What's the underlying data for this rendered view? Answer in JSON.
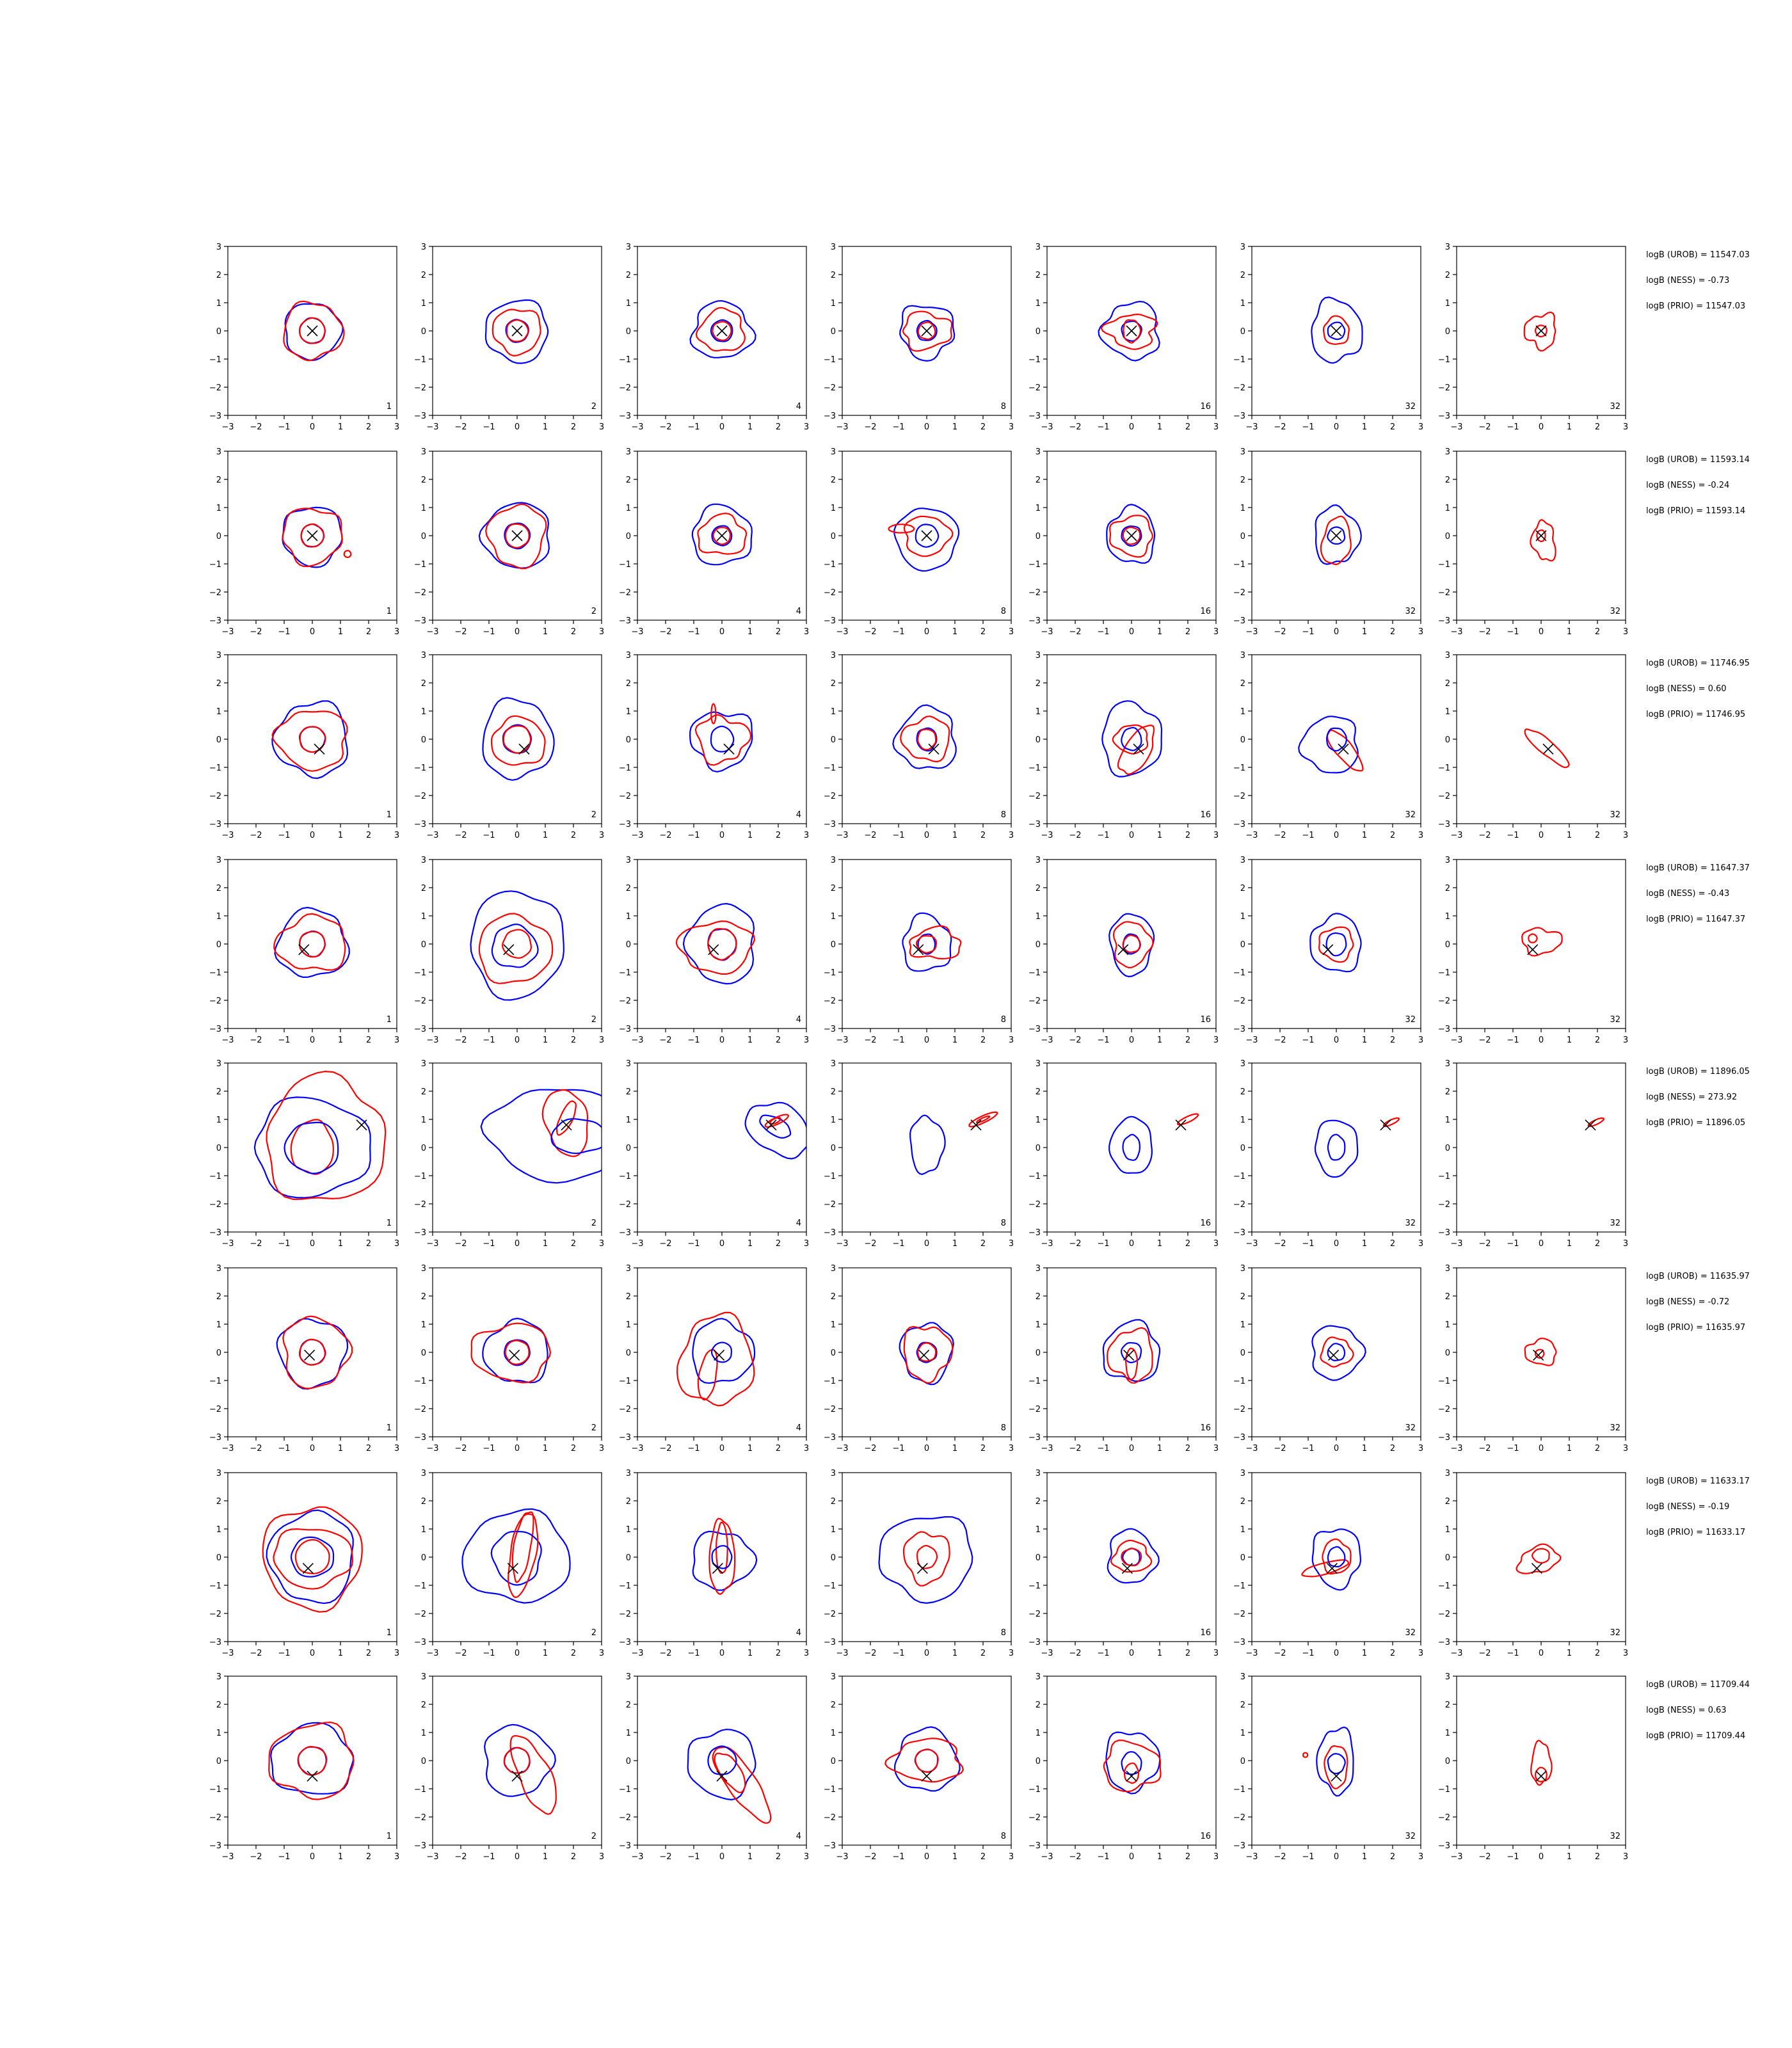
{
  "chart_data": {
    "type": "contour-grid",
    "rows": 8,
    "columns": 7,
    "axes": {
      "xlim": [
        -3,
        3
      ],
      "ylim": [
        -3,
        3
      ],
      "xticks": [
        -3,
        -2,
        -1,
        0,
        1,
        2,
        3
      ],
      "yticks": [
        -3,
        -2,
        -1,
        0,
        1,
        2,
        3
      ],
      "tick_labels": [
        "−3",
        "−2",
        "−1",
        "0",
        "1",
        "2",
        "3"
      ]
    },
    "panel_labels": [
      "1",
      "2",
      "4",
      "8",
      "16",
      "32",
      "32"
    ],
    "colors": {
      "blue": "#0000ff",
      "red": "#ff0000",
      "marker": "#000000"
    },
    "rows_data": [
      {
        "marker": [
          0.0,
          0.0
        ],
        "stats": [
          "logB (UROB) = 11547.03",
          "logB (NESS) = -0.73",
          "logB (PRIO) = 11547.03"
        ]
      },
      {
        "marker": [
          0.0,
          0.0
        ],
        "stats": [
          "logB (UROB) = 11593.14",
          "logB (NESS) = -0.24",
          "logB (PRIO) = 11593.14"
        ]
      },
      {
        "marker": [
          0.25,
          -0.35
        ],
        "stats": [
          "logB (UROB) = 11746.95",
          "logB (NESS) = 0.60",
          "logB (PRIO) = 11746.95"
        ]
      },
      {
        "marker": [
          -0.3,
          -0.2
        ],
        "stats": [
          "logB (UROB) = 11647.37",
          "logB (NESS) = -0.43",
          "logB (PRIO) = 11647.37"
        ]
      },
      {
        "marker": [
          1.75,
          0.8
        ],
        "stats": [
          "logB (UROB) = 11896.05",
          "logB (NESS) = 273.92",
          "logB (PRIO) = 11896.05"
        ]
      },
      {
        "marker": [
          -0.1,
          -0.1
        ],
        "stats": [
          "logB (UROB) = 11635.97",
          "logB (NESS) = -0.72",
          "logB (PRIO) = 11635.97"
        ]
      },
      {
        "marker": [
          -0.15,
          -0.4
        ],
        "stats": [
          "logB (UROB) = 11633.17",
          "logB (NESS) = -0.19",
          "logB (PRIO) = 11633.17"
        ]
      },
      {
        "marker": [
          0.0,
          -0.55
        ],
        "stats": [
          "logB (UROB) = 11709.44",
          "logB (NESS) = 0.63",
          "logB (PRIO) = 11709.44"
        ]
      }
    ]
  }
}
